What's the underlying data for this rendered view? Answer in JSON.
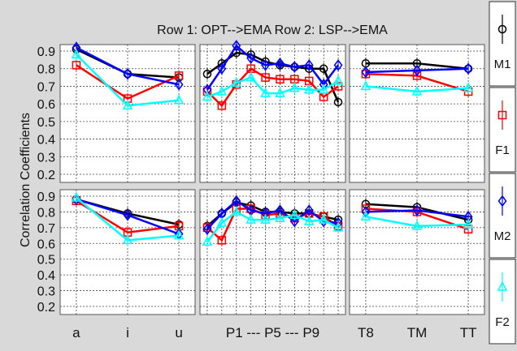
{
  "chart_data": {
    "type": "line",
    "title": "Row 1: OPT-->EMA      Row 2: LSP-->EMA",
    "ylabel": "Correlation Coefficients",
    "ylim": [
      0.2,
      0.9
    ],
    "yticks": [
      "0.9",
      "0.8",
      "0.7",
      "0.6",
      "0.5",
      "0.4",
      "0.3",
      "0.2"
    ],
    "grid": true,
    "legend_position": "right",
    "legend": [
      {
        "name": "M1",
        "color": "#000000",
        "marker": "circle"
      },
      {
        "name": "F1",
        "color": "#ff0000",
        "marker": "square"
      },
      {
        "name": "M2",
        "color": "#0000ff",
        "marker": "diamond"
      },
      {
        "name": "F2",
        "color": "#00ffff",
        "marker": "triangle"
      }
    ],
    "column_labels": [
      {
        "ticks": [
          "a",
          "i",
          "u"
        ]
      },
      {
        "ticks": [
          "P1 --- P5 --- P9"
        ]
      },
      {
        "ticks": [
          "T8",
          "TM",
          "TT"
        ]
      }
    ],
    "panels": [
      {
        "row": 1,
        "col": 1,
        "series": [
          {
            "name": "M1",
            "values": [
              0.91,
              0.77,
              0.75
            ]
          },
          {
            "name": "F1",
            "values": [
              0.82,
              0.63,
              0.76
            ]
          },
          {
            "name": "M2",
            "values": [
              0.92,
              0.77,
              0.71
            ]
          },
          {
            "name": "F2",
            "values": [
              0.88,
              0.59,
              0.62
            ]
          }
        ]
      },
      {
        "row": 1,
        "col": 2,
        "series": [
          {
            "name": "M1",
            "values": [
              0.77,
              0.83,
              0.89,
              0.88,
              0.84,
              0.82,
              0.81,
              0.8,
              0.8,
              0.61
            ]
          },
          {
            "name": "F1",
            "values": [
              0.67,
              0.59,
              0.71,
              0.8,
              0.75,
              0.74,
              0.74,
              0.73,
              0.64,
              0.7
            ]
          },
          {
            "name": "M2",
            "values": [
              0.68,
              0.8,
              0.93,
              0.86,
              0.82,
              0.83,
              0.81,
              0.82,
              0.71,
              0.82
            ]
          },
          {
            "name": "F2",
            "values": [
              0.64,
              0.67,
              0.72,
              0.75,
              0.66,
              0.66,
              0.69,
              0.68,
              0.68,
              0.73
            ]
          }
        ]
      },
      {
        "row": 1,
        "col": 3,
        "series": [
          {
            "name": "M1",
            "values": [
              0.83,
              0.83,
              0.8
            ]
          },
          {
            "name": "F1",
            "values": [
              0.77,
              0.76,
              0.67
            ]
          },
          {
            "name": "M2",
            "values": [
              0.78,
              0.79,
              0.8
            ]
          },
          {
            "name": "F2",
            "values": [
              0.7,
              0.67,
              0.69
            ]
          }
        ]
      },
      {
        "row": 2,
        "col": 1,
        "series": [
          {
            "name": "M1",
            "values": [
              0.88,
              0.79,
              0.72
            ]
          },
          {
            "name": "F1",
            "values": [
              0.87,
              0.67,
              0.71
            ]
          },
          {
            "name": "M2",
            "values": [
              0.88,
              0.78,
              0.66
            ]
          },
          {
            "name": "F2",
            "values": [
              0.89,
              0.62,
              0.65
            ]
          }
        ]
      },
      {
        "row": 2,
        "col": 2,
        "series": [
          {
            "name": "M1",
            "values": [
              0.71,
              0.79,
              0.86,
              0.84,
              0.8,
              0.8,
              0.79,
              0.79,
              0.77,
              0.75
            ]
          },
          {
            "name": "F1",
            "values": [
              0.7,
              0.62,
              0.82,
              0.82,
              0.78,
              0.79,
              0.76,
              0.79,
              0.77,
              0.71
            ]
          },
          {
            "name": "M2",
            "values": [
              0.69,
              0.79,
              0.87,
              0.81,
              0.79,
              0.81,
              0.74,
              0.81,
              0.74,
              0.73
            ]
          },
          {
            "name": "F2",
            "values": [
              0.61,
              0.73,
              0.8,
              0.75,
              0.75,
              0.76,
              0.78,
              0.74,
              0.75,
              0.7
            ]
          }
        ]
      },
      {
        "row": 2,
        "col": 3,
        "series": [
          {
            "name": "M1",
            "values": [
              0.85,
              0.83,
              0.75
            ]
          },
          {
            "name": "F1",
            "values": [
              0.82,
              0.8,
              0.69
            ]
          },
          {
            "name": "M2",
            "values": [
              0.8,
              0.81,
              0.77
            ]
          },
          {
            "name": "F2",
            "values": [
              0.77,
              0.71,
              0.72
            ]
          }
        ]
      }
    ]
  }
}
